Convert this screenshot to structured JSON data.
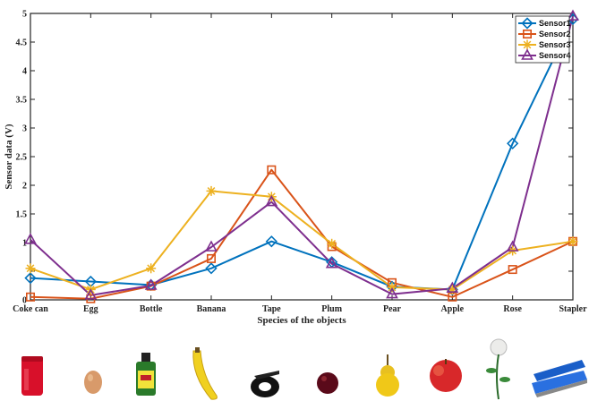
{
  "chart_data": {
    "type": "line",
    "title": "",
    "xlabel": "Species of the objects",
    "ylabel": "Sensor data (V)",
    "categories": [
      "Coke can",
      "Egg",
      "Bottle",
      "Banana",
      "Tape",
      "Plum",
      "Pear",
      "Apple",
      "Rose",
      "Stapler"
    ],
    "ylim": [
      0,
      5
    ],
    "yticks": [
      0,
      0.5,
      1,
      1.5,
      2,
      2.5,
      3,
      3.5,
      4,
      4.5,
      5
    ],
    "ytick_labels": [
      "0",
      "",
      "1",
      "1.5",
      "2",
      "2.5",
      "3",
      "3.5",
      "4",
      "4.5",
      "5"
    ],
    "grid": false,
    "legend_position": "top-right",
    "series": [
      {
        "name": "Sensor1",
        "color": "#0072BD",
        "marker": "diamond",
        "values": [
          0.38,
          0.32,
          0.26,
          0.55,
          1.02,
          0.66,
          0.23,
          0.18,
          2.73,
          4.9
        ]
      },
      {
        "name": "Sensor2",
        "color": "#D95319",
        "marker": "square",
        "values": [
          0.05,
          0.02,
          0.24,
          0.72,
          2.27,
          0.93,
          0.3,
          0.05,
          0.53,
          1.02
        ]
      },
      {
        "name": "Sensor3",
        "color": "#EDB120",
        "marker": "star",
        "values": [
          0.55,
          0.18,
          0.55,
          1.9,
          1.8,
          0.98,
          0.22,
          0.18,
          0.86,
          1.02
        ]
      },
      {
        "name": "Sensor4",
        "color": "#7E2F8E",
        "marker": "triangle",
        "values": [
          1.05,
          0.08,
          0.25,
          0.92,
          1.71,
          0.63,
          0.1,
          0.2,
          0.92,
          4.95
        ]
      }
    ]
  },
  "object_images": [
    {
      "name": "coke-can-image",
      "label": "Coke can"
    },
    {
      "name": "egg-image",
      "label": "Egg"
    },
    {
      "name": "bottle-image",
      "label": "Bottle"
    },
    {
      "name": "banana-image",
      "label": "Banana"
    },
    {
      "name": "tape-image",
      "label": "Tape"
    },
    {
      "name": "plum-image",
      "label": "Plum"
    },
    {
      "name": "pear-image",
      "label": "Pear"
    },
    {
      "name": "apple-image",
      "label": "Apple"
    },
    {
      "name": "rose-image",
      "label": "Rose"
    },
    {
      "name": "stapler-image",
      "label": "Stapler"
    }
  ]
}
